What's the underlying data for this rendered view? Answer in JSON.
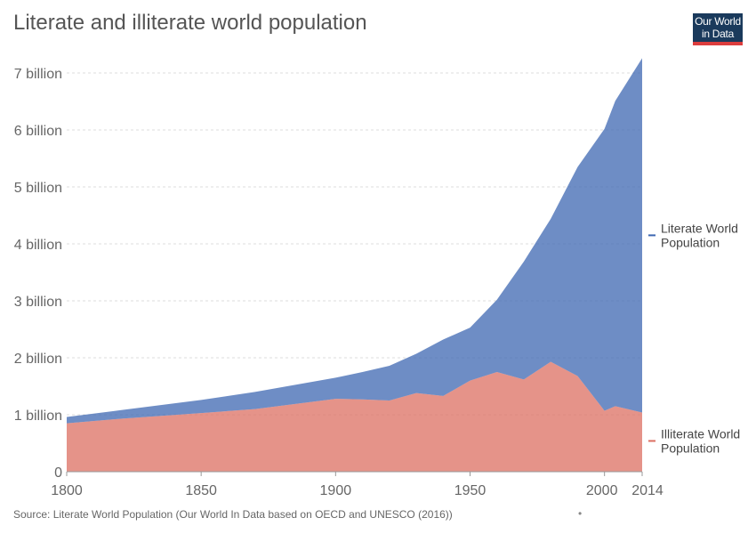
{
  "header": {
    "title": "Literate and illiterate world population"
  },
  "logo": {
    "line1": "Our World",
    "line2": "in Data",
    "bg_color": "#1a3a5c",
    "accent_color": "#dc3d3d"
  },
  "footer": {
    "source": "Source: Literate World Population (Our World In Data based on OECD and UNESCO (2016))",
    "marker": "•"
  },
  "chart_data": {
    "type": "area",
    "stacked": true,
    "x_label": "",
    "y_label": "",
    "xlim": [
      1800,
      2014
    ],
    "ylim": [
      0,
      7.3
    ],
    "x_ticks": [
      1800,
      1850,
      1900,
      1950,
      2000,
      2014
    ],
    "x_tick_labels": [
      "1800",
      "1850",
      "1900",
      "1950",
      "2000",
      "2014"
    ],
    "y_ticks": [
      0,
      1,
      2,
      3,
      4,
      5,
      6,
      7
    ],
    "y_tick_labels": [
      "0",
      "1 billion",
      "2 billion",
      "3 billion",
      "4 billion",
      "5 billion",
      "6 billion",
      "7 billion"
    ],
    "grid": true,
    "legend": "right-inline",
    "x": [
      1800,
      1820,
      1850,
      1870,
      1900,
      1910,
      1920,
      1930,
      1940,
      1950,
      1960,
      1970,
      1980,
      1990,
      2000,
      2004,
      2014
    ],
    "series": [
      {
        "name": "Illiterate World Population",
        "color": "#dc6f62",
        "values": [
          0.85,
          0.93,
          1.03,
          1.1,
          1.28,
          1.27,
          1.25,
          1.38,
          1.33,
          1.6,
          1.75,
          1.62,
          1.93,
          1.68,
          1.07,
          1.15,
          1.04
        ]
      },
      {
        "name": "Literate World Population",
        "color": "#3d67b1",
        "values": [
          0.11,
          0.15,
          0.23,
          0.3,
          0.37,
          0.48,
          0.61,
          0.69,
          0.99,
          0.93,
          1.27,
          2.07,
          2.51,
          3.67,
          4.95,
          5.36,
          6.22
        ]
      }
    ],
    "legend_labels": [
      {
        "line1": "Literate World",
        "line2": "Population"
      },
      {
        "line1": "Illiterate World",
        "line2": "Population"
      }
    ]
  }
}
